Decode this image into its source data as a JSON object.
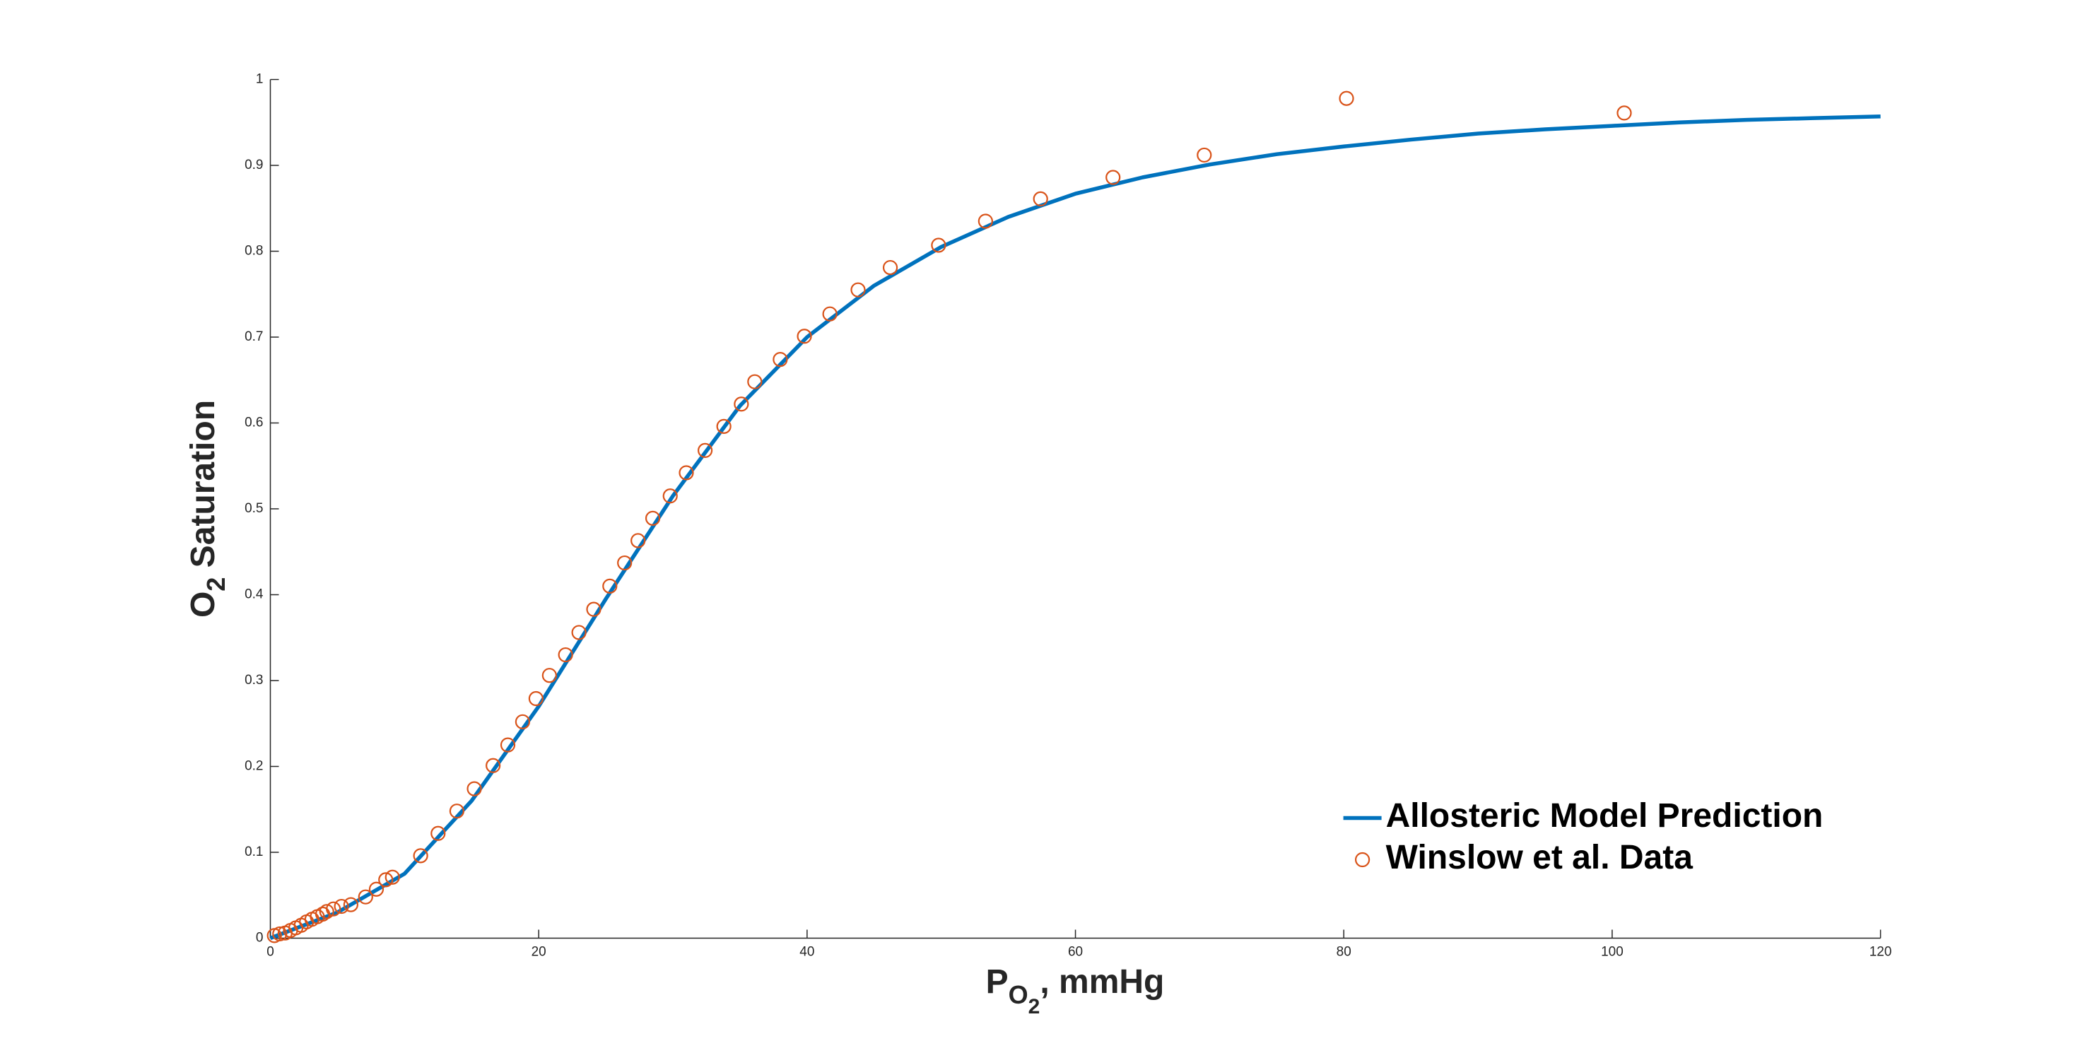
{
  "chart_data": {
    "type": "line",
    "xlabel": [
      "P",
      "O",
      "2",
      ", mmHg"
    ],
    "ylabel": [
      "O",
      "2",
      " Saturation"
    ],
    "xlim": [
      0,
      120
    ],
    "xticks": [
      0,
      20,
      40,
      60,
      80,
      100,
      120
    ],
    "ylim": [
      0,
      1
    ],
    "yticks": [
      0,
      0.1,
      0.2,
      0.3,
      0.4,
      0.5,
      0.6,
      0.7,
      0.8,
      0.9,
      1
    ],
    "legend": "lower right",
    "series": [
      {
        "name": "Allosteric Model Prediction",
        "type": "line",
        "color": "#0072BD",
        "x": [
          0,
          5,
          10,
          15,
          20,
          25,
          30,
          35,
          40,
          45,
          50,
          55,
          60,
          65,
          70,
          75,
          80,
          85,
          90,
          95,
          100,
          105,
          110,
          115,
          120
        ],
        "values": [
          0,
          0.03,
          0.075,
          0.16,
          0.27,
          0.395,
          0.515,
          0.62,
          0.7,
          0.76,
          0.805,
          0.84,
          0.867,
          0.886,
          0.901,
          0.913,
          0.922,
          0.93,
          0.937,
          0.942,
          0.946,
          0.95,
          0.953,
          0.955,
          0.957
        ]
      },
      {
        "name": "Winslow et al. Data",
        "type": "scatter",
        "color": "#D95319",
        "x": [
          0.3,
          0.7,
          1.1,
          1.5,
          1.9,
          2.3,
          2.7,
          3.1,
          3.5,
          3.9,
          4.2,
          4.7,
          5.3,
          6.0,
          7.1,
          7.9,
          8.6,
          9.1,
          11.2,
          12.5,
          13.9,
          15.2,
          16.6,
          17.7,
          18.8,
          19.8,
          20.8,
          22.0,
          23.0,
          24.1,
          25.3,
          26.4,
          27.4,
          28.5,
          29.8,
          31.0,
          32.4,
          33.8,
          35.1,
          36.1,
          38.0,
          39.8,
          41.7,
          43.8,
          46.2,
          49.8,
          53.3,
          57.4,
          62.8,
          69.6,
          80.2,
          100.9
        ],
        "values": [
          0.003,
          0.005,
          0.006,
          0.009,
          0.012,
          0.015,
          0.019,
          0.022,
          0.025,
          0.028,
          0.031,
          0.034,
          0.037,
          0.039,
          0.048,
          0.057,
          0.068,
          0.071,
          0.096,
          0.122,
          0.148,
          0.174,
          0.201,
          0.225,
          0.252,
          0.279,
          0.306,
          0.33,
          0.356,
          0.383,
          0.41,
          0.437,
          0.463,
          0.489,
          0.515,
          0.542,
          0.568,
          0.596,
          0.622,
          0.648,
          0.674,
          0.701,
          0.727,
          0.755,
          0.781,
          0.807,
          0.835,
          0.861,
          0.886,
          0.912,
          0.978,
          0.961
        ]
      }
    ]
  }
}
